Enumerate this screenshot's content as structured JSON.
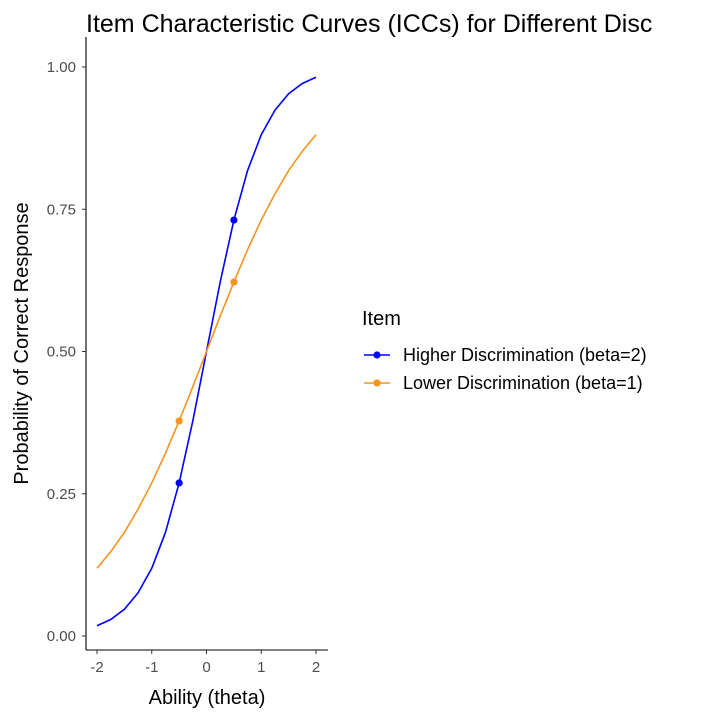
{
  "chart_data": {
    "type": "line",
    "title": "Item Characteristic Curves (ICCs) for Different Disc",
    "xlabel": "Ability (theta)",
    "ylabel": "Probability of Correct Response",
    "xlim": [
      -2,
      2
    ],
    "ylim": [
      0,
      1
    ],
    "x_ticks": [
      -2,
      -1,
      0,
      1,
      2
    ],
    "x_tick_labels": [
      "-2",
      "-1",
      "0",
      "1",
      "2"
    ],
    "y_ticks": [
      0,
      0.25,
      0.5,
      0.75,
      1
    ],
    "y_tick_labels": [
      "0.00",
      "0.25",
      "0.50",
      "0.75",
      "1.00"
    ],
    "grid": false,
    "legend": {
      "title": "Item",
      "position": "right"
    },
    "series": [
      {
        "name": "Higher Discrimination (beta=2)",
        "color": "#0000ff",
        "x": [
          -2.0,
          -1.75,
          -1.5,
          -1.25,
          -1.0,
          -0.75,
          -0.5,
          -0.25,
          0.0,
          0.25,
          0.5,
          0.75,
          1.0,
          1.25,
          1.5,
          1.75,
          2.0
        ],
        "y": [
          0.018,
          0.029,
          0.047,
          0.076,
          0.119,
          0.182,
          0.269,
          0.378,
          0.5,
          0.622,
          0.731,
          0.818,
          0.881,
          0.924,
          0.953,
          0.971,
          0.982
        ],
        "points": [
          {
            "x": -0.5,
            "y": 0.269
          },
          {
            "x": 0.5,
            "y": 0.731
          }
        ]
      },
      {
        "name": "Lower Discrimination (beta=1)",
        "color": "#f7941d",
        "x": [
          -2.0,
          -1.75,
          -1.5,
          -1.25,
          -1.0,
          -0.75,
          -0.5,
          -0.25,
          0.0,
          0.25,
          0.5,
          0.75,
          1.0,
          1.25,
          1.5,
          1.75,
          2.0
        ],
        "y": [
          0.119,
          0.148,
          0.182,
          0.223,
          0.269,
          0.321,
          0.378,
          0.438,
          0.5,
          0.562,
          0.622,
          0.679,
          0.731,
          0.777,
          0.818,
          0.852,
          0.881
        ],
        "points": [
          {
            "x": -0.5,
            "y": 0.378
          },
          {
            "x": 0.5,
            "y": 0.622
          }
        ]
      }
    ]
  }
}
